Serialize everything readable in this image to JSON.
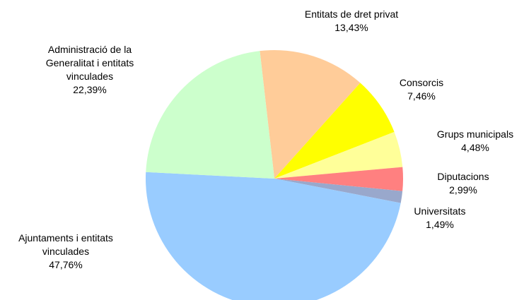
{
  "chart_data": {
    "type": "pie",
    "categories": [
      "Entitats de dret privat",
      "Consorcis",
      "Grups municipals",
      "Diputacions",
      "Universitats",
      "Ajuntaments i entitats vinculades",
      "Administració de la Generalitat i entitats vinculades"
    ],
    "values": [
      13.43,
      7.46,
      4.48,
      2.99,
      1.49,
      47.76,
      22.39
    ],
    "value_labels": [
      "13,43%",
      "7,46%",
      "4,48%",
      "2,99%",
      "1,49%",
      "47,76%",
      "22,39%"
    ],
    "colors": [
      "#ffcc99",
      "#ffff00",
      "#ffff99",
      "#ff8080",
      "#99a8cc",
      "#99ccff",
      "#ccffcc"
    ]
  }
}
